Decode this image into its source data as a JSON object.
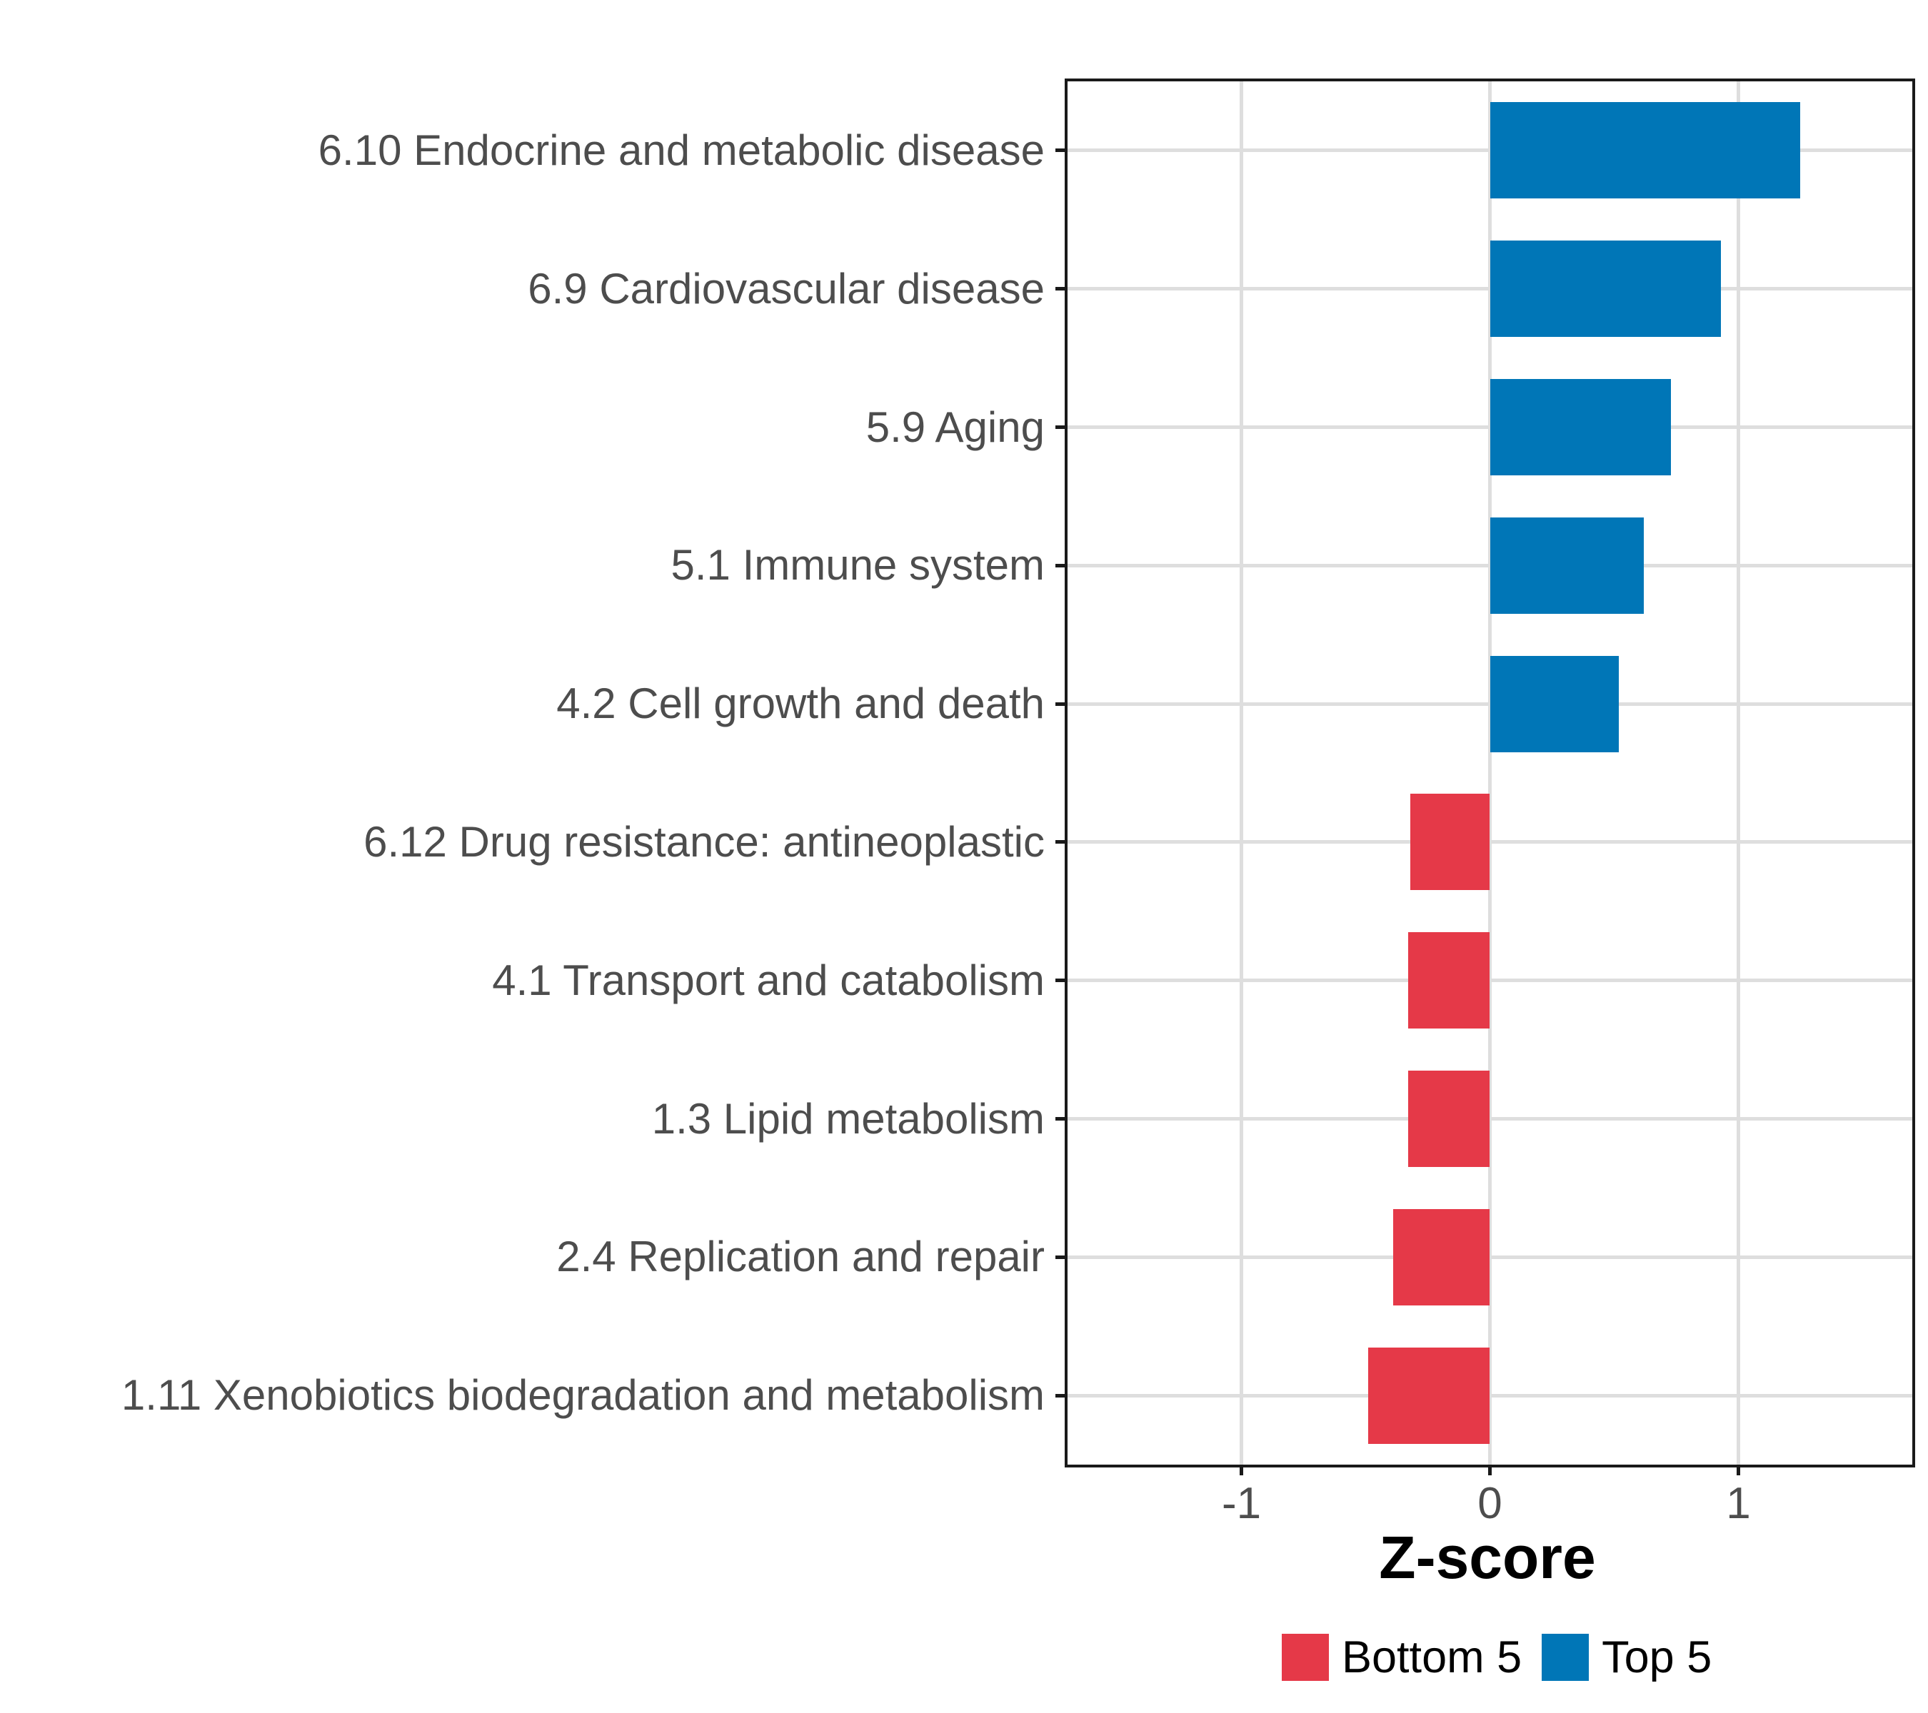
{
  "chart_data": {
    "type": "bar",
    "orientation": "horizontal",
    "title": "",
    "xlabel": "Z-score",
    "ylabel": "",
    "categories": [
      "6.10 Endocrine and metabolic disease",
      "6.9 Cardiovascular disease",
      "5.9 Aging",
      "5.1 Immune system",
      "4.2 Cell growth and death",
      "6.12 Drug resistance: antineoplastic",
      "4.1 Transport and catabolism",
      "1.3 Lipid metabolism",
      "2.4 Replication and repair",
      "1.11 Xenobiotics biodegradation and metabolism"
    ],
    "values": [
      1.25,
      0.93,
      0.73,
      0.62,
      0.52,
      -0.32,
      -0.33,
      -0.33,
      -0.39,
      -0.49
    ],
    "groups": [
      "Top 5",
      "Top 5",
      "Top 5",
      "Top 5",
      "Top 5",
      "Bottom 5",
      "Bottom 5",
      "Bottom 5",
      "Bottom 5",
      "Bottom 5"
    ],
    "x_ticks": [
      {
        "label": "-1",
        "value": -1
      },
      {
        "label": "0",
        "value": 0
      },
      {
        "label": "1",
        "value": 1
      }
    ],
    "xlim": [
      -1.7,
      1.7
    ],
    "grid": true,
    "legend": {
      "position": "bottom",
      "entries": [
        {
          "label": "Bottom 5",
          "color": "#E53948"
        },
        {
          "label": "Top 5",
          "color": "#0076B7"
        }
      ]
    },
    "colors": {
      "bottom5": "#E53948",
      "top5": "#0076B7",
      "grid": "#DEDEDE",
      "panel_border": "#1A1A1A",
      "axis_text": "#4D4D4D",
      "axis_title": "#000000"
    }
  }
}
